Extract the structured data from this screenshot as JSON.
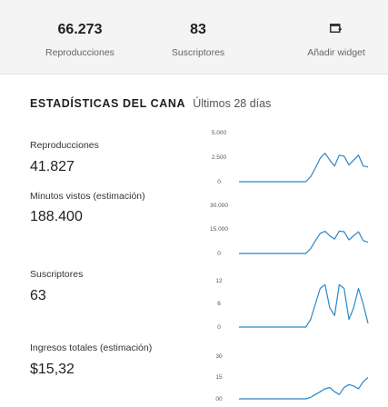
{
  "summary": {
    "views": {
      "value": "66.273",
      "label": "Reproducciones"
    },
    "subscribers": {
      "value": "83",
      "label": "Suscriptores"
    },
    "add_widget": {
      "label": "Añadir widget",
      "icon": "add-widget-icon"
    }
  },
  "section": {
    "title": "ESTADÍSTICAS DEL CANA",
    "period": "Últimos 28 días"
  },
  "colors": {
    "line": "#2a87c8",
    "header_bg": "#f4f4f4"
  },
  "metrics": [
    {
      "label": "Reproducciones",
      "value": "41.827",
      "ticks": [
        "5.000",
        "2.500",
        "0"
      ]
    },
    {
      "label": "Minutos vistos (estimación)",
      "value": "188.400",
      "ticks": [
        "30.000",
        "15.000",
        "0"
      ]
    },
    {
      "label": "Suscriptores",
      "value": "63",
      "ticks": [
        "12",
        "6",
        "0"
      ]
    },
    {
      "label": "Ingresos totales (estimación)",
      "value": "$15,32",
      "ticks": [
        "30",
        "15",
        "00"
      ]
    }
  ],
  "chart_data": [
    {
      "type": "line",
      "ylim": [
        0,
        5000
      ],
      "ticks": [
        "5.000",
        "2.500",
        "0"
      ],
      "values": [
        0,
        0,
        0,
        0,
        0,
        0,
        0,
        0,
        0,
        0,
        0,
        0,
        0,
        0,
        0,
        500,
        1400,
        2400,
        2900,
        2200,
        1600,
        2700,
        2600,
        1700,
        2200,
        2700,
        1600,
        1500
      ]
    },
    {
      "type": "line",
      "ylim": [
        0,
        30000
      ],
      "ticks": [
        "30.000",
        "15.000",
        "0"
      ],
      "values": [
        0,
        0,
        0,
        0,
        0,
        0,
        0,
        0,
        0,
        0,
        0,
        0,
        0,
        0,
        0,
        3000,
        8000,
        12500,
        13800,
        11000,
        9000,
        14000,
        13500,
        8500,
        11000,
        13500,
        8000,
        7000
      ]
    },
    {
      "type": "line",
      "ylim": [
        0,
        12
      ],
      "ticks": [
        "12",
        "6",
        "0"
      ],
      "values": [
        0,
        0,
        0,
        0,
        0,
        0,
        0,
        0,
        0,
        0,
        0,
        0,
        0,
        0,
        0,
        2,
        6,
        10,
        11,
        5,
        3,
        11,
        10,
        2,
        5,
        10,
        6,
        1
      ]
    },
    {
      "type": "line",
      "ylim": [
        0,
        30
      ],
      "ticks": [
        "30",
        "15",
        "00"
      ],
      "values": [
        0,
        0,
        0,
        0,
        0,
        0,
        0,
        0,
        0,
        0,
        0,
        0,
        0,
        0,
        0,
        1,
        3,
        5,
        7,
        8,
        5,
        3,
        8,
        10,
        9,
        7,
        12,
        15
      ]
    }
  ]
}
